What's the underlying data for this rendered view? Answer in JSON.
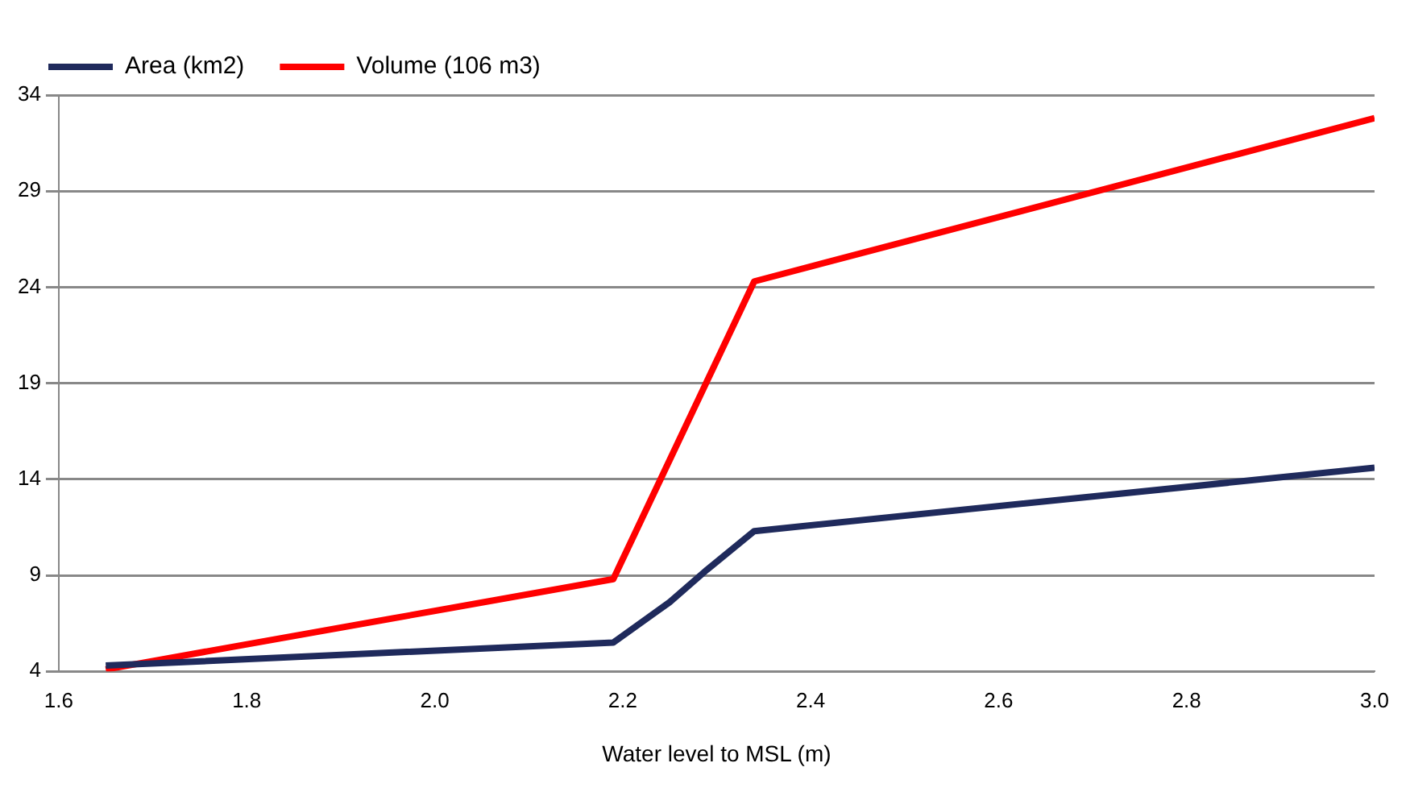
{
  "chart_data": {
    "type": "line",
    "xlabel": "Water level to MSL (m)",
    "series": [
      {
        "name": "Area (km2)",
        "color": "#1f2a5c",
        "x": [
          1.65,
          2.19,
          2.25,
          2.29,
          2.34,
          3.0
        ],
        "values": [
          4.3,
          5.5,
          7.6,
          9.3,
          11.3,
          14.6
        ]
      },
      {
        "name": "Volume (106 m3)",
        "color": "#ff0000",
        "x": [
          1.65,
          2.19,
          2.34,
          3.0
        ],
        "values": [
          4.1,
          8.8,
          24.3,
          32.8
        ]
      }
    ],
    "xlim": [
      1.6,
      3.0
    ],
    "xticks": [
      {
        "value": 1.6,
        "label": "1.6"
      },
      {
        "value": 1.8,
        "label": "1.8"
      },
      {
        "value": 2.0,
        "label": "2.0"
      },
      {
        "value": 2.2,
        "label": "2.2"
      },
      {
        "value": 2.4,
        "label": "2.4"
      },
      {
        "value": 2.6,
        "label": "2.6"
      },
      {
        "value": 2.8,
        "label": "2.8"
      },
      {
        "value": 3.0,
        "label": "3.0"
      }
    ],
    "ylim": [
      4,
      34
    ],
    "yticks": [
      4,
      9,
      14,
      19,
      24,
      29,
      34
    ],
    "grid": "y",
    "legend": "top left",
    "marker": "none",
    "line_style": "solid"
  }
}
